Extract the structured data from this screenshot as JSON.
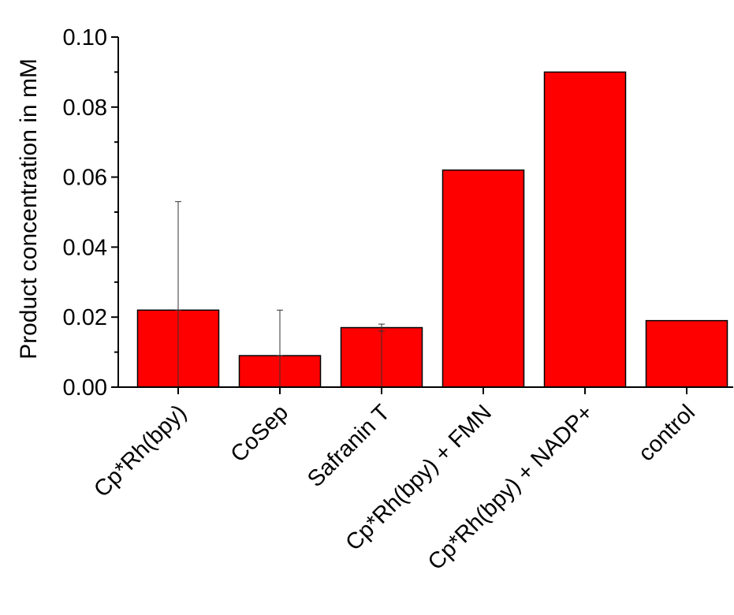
{
  "chart_data": {
    "type": "bar",
    "title": "",
    "xlabel": "",
    "ylabel": "Product concentration in mM",
    "ylim": [
      0,
      0.1
    ],
    "yticks": [
      "0.00",
      "0.02",
      "0.04",
      "0.06",
      "0.08",
      "0.10"
    ],
    "categories": [
      "Cp*Rh(bpy)",
      "CoSep",
      "Safranin T",
      "Cp*Rh(bpy) + FMN",
      "Cp*Rh(bpy) + NADP+",
      "control"
    ],
    "values": [
      0.022,
      0.009,
      0.017,
      0.062,
      0.09,
      0.019
    ],
    "error_upper": [
      0.053,
      0.022,
      0.018,
      null,
      null,
      null
    ],
    "error_lower": [
      0.022,
      0.009,
      0.016,
      null,
      null,
      null
    ],
    "bar_color": "#ff0000",
    "grid": false,
    "legend": "none"
  }
}
